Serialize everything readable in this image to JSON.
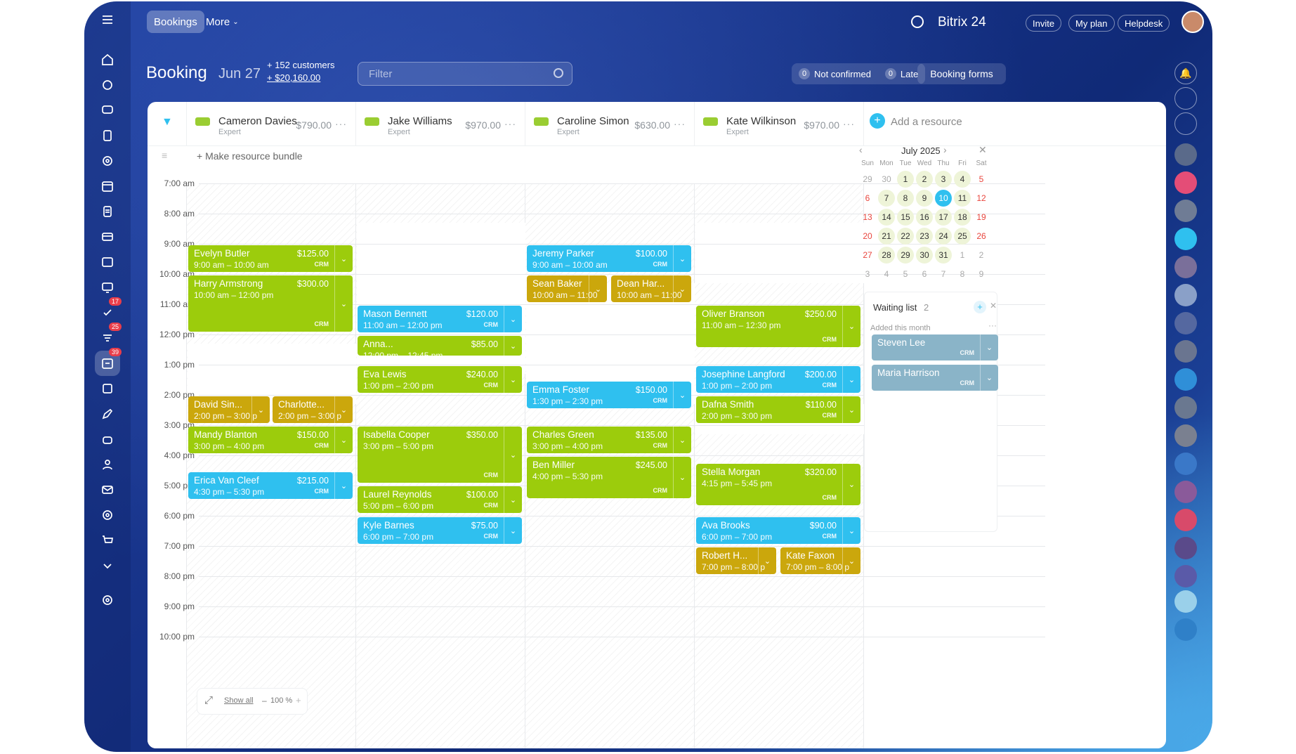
{
  "topbar": {
    "tab_bookings": "Bookings",
    "more": "More",
    "brand": "Bitrix 24",
    "invite": "Invite",
    "my_plan": "My plan",
    "helpdesk": "Helpdesk"
  },
  "header": {
    "title": "Booking",
    "date": "Jun 27",
    "customers": "+ 152 customers",
    "revenue": "+ $20,160.00",
    "filter_placeholder": "Filter",
    "not_confirmed_label": "Not confirmed",
    "not_confirmed_count": "0",
    "late_label": "Late",
    "late_count": "0",
    "booking_forms": "Booking forms"
  },
  "badges": {
    "tasks": "17",
    "feed": "25",
    "booking": "39"
  },
  "resources": [
    {
      "name": "Cameron Davies",
      "role": "Expert",
      "price": "$790.00"
    },
    {
      "name": "Jake Williams",
      "role": "Expert",
      "price": "$970.00"
    },
    {
      "name": "Caroline Simon",
      "role": "Expert",
      "price": "$630.00"
    },
    {
      "name": "Kate Wilkinson",
      "role": "Expert",
      "price": "$970.00"
    }
  ],
  "add_resource": "Add a resource",
  "make_bundle": "+ Make resource bundle",
  "hours": [
    "7:00 am",
    "8:00 am",
    "9:00 am",
    "10:00 am",
    "11:00 am",
    "12:00 pm",
    "1:00 pm",
    "2:00 pm",
    "3:00 pm",
    "4:00 pm",
    "5:00 pm",
    "6:00 pm",
    "7:00 pm",
    "8:00 pm",
    "9:00 pm",
    "10:00 pm"
  ],
  "events": [
    {
      "name": "Evelyn Butler",
      "time": "9:00 am – 10:00 am",
      "price": "$125.00"
    },
    {
      "name": "Harry Armstrong",
      "time": "10:00 am – 12:00 pm",
      "price": "$300.00"
    },
    {
      "name": "David Sin...",
      "time": "2:00 pm – 3:00 p"
    },
    {
      "name": "Charlotte...",
      "time": "2:00 pm – 3:00 p"
    },
    {
      "name": "Mandy Blanton",
      "time": "3:00 pm – 4:00 pm",
      "price": "$150.00"
    },
    {
      "name": "Erica Van Cleef",
      "time": "4:30 pm – 5:30 pm",
      "price": "$215.00"
    },
    {
      "name": "Mason Bennett",
      "time": "11:00 am – 12:00 pm",
      "price": "$120.00"
    },
    {
      "name": "Anna...",
      "time": "12:00 pm – 12:45 pm",
      "price": "$85.00"
    },
    {
      "name": "Eva Lewis",
      "time": "1:00 pm – 2:00 pm",
      "price": "$240.00"
    },
    {
      "name": "Isabella Cooper",
      "time": "3:00 pm – 5:00 pm",
      "price": "$350.00"
    },
    {
      "name": "Laurel Reynolds",
      "time": "5:00 pm – 6:00 pm",
      "price": "$100.00"
    },
    {
      "name": "Kyle Barnes",
      "time": "6:00 pm – 7:00 pm",
      "price": "$75.00"
    },
    {
      "name": "Jeremy Parker",
      "time": "9:00 am – 10:00 am",
      "price": "$100.00"
    },
    {
      "name": "Sean Baker",
      "time": "10:00 am – 11:00"
    },
    {
      "name": "Dean Har...",
      "time": "10:00 am – 11:00"
    },
    {
      "name": "Emma Foster",
      "time": "1:30 pm – 2:30 pm",
      "price": "$150.00"
    },
    {
      "name": "Charles Green",
      "time": "3:00 pm – 4:00 pm",
      "price": "$135.00"
    },
    {
      "name": "Ben Miller",
      "time": "4:00 pm – 5:30 pm",
      "price": "$245.00"
    },
    {
      "name": "Oliver Branson",
      "time": "11:00 am – 12:30 pm",
      "price": "$250.00"
    },
    {
      "name": "Josephine Langford",
      "time": "1:00 pm – 2:00 pm",
      "price": "$200.00"
    },
    {
      "name": "Dafna Smith",
      "time": "2:00 pm – 3:00 pm",
      "price": "$110.00"
    },
    {
      "name": "Stella Morgan",
      "time": "4:15 pm – 5:45 pm",
      "price": "$320.00"
    },
    {
      "name": "Ava Brooks",
      "time": "6:00 pm – 7:00 pm",
      "price": "$90.00"
    },
    {
      "name": "Robert H...",
      "time": "7:00 pm – 8:00 p"
    },
    {
      "name": "Kate Faxon",
      "time": "7:00 pm – 8:00 p"
    }
  ],
  "crm": "CRM",
  "calendar": {
    "month": "July 2025",
    "weekdays": [
      "Sun",
      "Mon",
      "Tue",
      "Wed",
      "Thu",
      "Fri",
      "Sat"
    ],
    "days": [
      "29",
      "30",
      "1",
      "2",
      "3",
      "4",
      "5",
      "6",
      "7",
      "8",
      "9",
      "10",
      "11",
      "12",
      "13",
      "14",
      "15",
      "16",
      "17",
      "18",
      "19",
      "20",
      "21",
      "22",
      "23",
      "24",
      "25",
      "26",
      "27",
      "28",
      "29",
      "30",
      "31",
      "1",
      "2",
      "3",
      "4",
      "5",
      "6",
      "7",
      "8",
      "9"
    ],
    "selected": "10"
  },
  "waiting": {
    "title": "Waiting list",
    "count": "2",
    "added": "Added this month",
    "items": [
      "Steven Lee",
      "Maria Harrison"
    ]
  },
  "footer": {
    "show_all": "Show all",
    "zoom": "100 %",
    "minus": "–",
    "plus": "+"
  },
  "colors": {
    "green": "#9ccc0c",
    "blue": "#2fc0ef",
    "yellow": "#cba70c",
    "grey_blue": "#8ab4c8",
    "selected_day": "#2fc0ef"
  }
}
